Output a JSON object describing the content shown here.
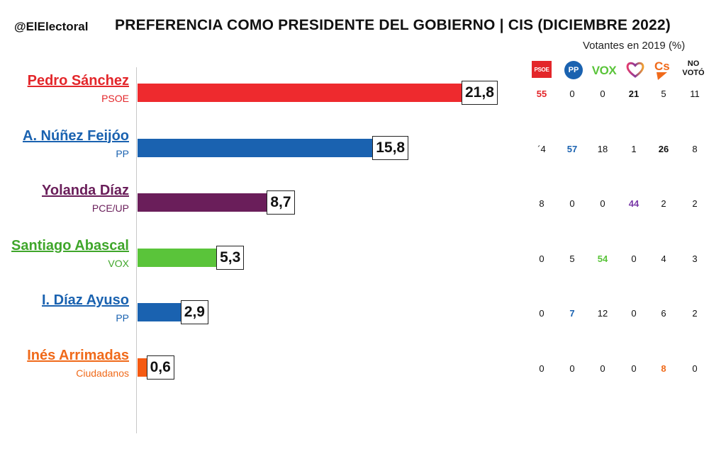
{
  "header": {
    "handle": "@ElElectoral",
    "title": "PREFERENCIA COMO PRESIDENTE DEL GOBIERNO |   CIS (DICIEMBRE 2022)",
    "subtitle": "Votantes en 2019 (%)"
  },
  "table_header": {
    "columns": [
      {
        "name": "PSOE",
        "icon": "psoe-logo",
        "logo_text": "PSOE",
        "color": "#e3262a"
      },
      {
        "name": "PP",
        "icon": "pp-logo",
        "logo_text": "PP",
        "color": "#1a62b0"
      },
      {
        "name": "VOX",
        "icon": "vox-logo",
        "logo_text": "VOX",
        "color": "#5ac43a"
      },
      {
        "name": "UP",
        "icon": "heart-logo",
        "color": "#6c2a7a"
      },
      {
        "name": "Cs",
        "icon": "cs-logo",
        "color": "#f06a1a"
      },
      {
        "name": "NO VOTÓ",
        "icon": "none"
      }
    ],
    "novoto_line1": "NO",
    "novoto_line2": "VOTÓ"
  },
  "chart_data": {
    "type": "bar",
    "orientation": "horizontal",
    "title": "PREFERENCIA COMO PRESIDENTE DEL GOBIERNO |   CIS (DICIEMBRE 2022)",
    "categories": [
      "Pedro Sánchez",
      "A. Núñez Feijóo",
      "Yolanda Díaz",
      "Santiago Abascal",
      "I. Díaz Ayuso",
      "Inés Arrimadas"
    ],
    "values": [
      21.8,
      15.8,
      8.7,
      5.3,
      2.9,
      0.6
    ],
    "value_labels": [
      "21,8",
      "15,8",
      "8,7",
      "5,3",
      "2,9",
      "0,6"
    ],
    "xlim": [
      0,
      25
    ],
    "grid": false,
    "bars": [
      {
        "name": "Pedro Sánchez",
        "party": "PSOE",
        "value": 21.8,
        "label": "21,8",
        "color": "#ee2a2e",
        "text_color": "#e3262a"
      },
      {
        "name": "A. Núñez Feijóo",
        "party": "PP",
        "value": 15.8,
        "label": "15,8",
        "color": "#1a62b0",
        "text_color": "#1a62b0"
      },
      {
        "name": "Yolanda Díaz",
        "party": "PCE/UP",
        "value": 8.7,
        "label": "8,7",
        "color": "#6a1e5a",
        "text_color": "#6a1e5a"
      },
      {
        "name": "Santiago Abascal",
        "party": "VOX",
        "value": 5.3,
        "label": "5,3",
        "color": "#5ac43a",
        "text_color": "#3fa62a"
      },
      {
        "name": "I. Díaz Ayuso",
        "party": "PP",
        "value": 2.9,
        "label": "2,9",
        "color": "#1a62b0",
        "text_color": "#1a62b0"
      },
      {
        "name": "Inés Arrimadas",
        "party": "Ciudadanos",
        "value": 0.6,
        "label": "0,6",
        "color": "#f55a12",
        "text_color": "#f06a1a"
      }
    ],
    "table": {
      "columns": [
        "PSOE",
        "PP",
        "VOX",
        "UP",
        "Cs",
        "NO VOTÓ"
      ],
      "rows": [
        {
          "candidate": "Pedro Sánchez",
          "values": [
            "55",
            "0",
            "0",
            "21",
            "5",
            "11"
          ],
          "highlight": [
            0,
            3
          ],
          "highlight_color": "#e3262a"
        },
        {
          "candidate": "A. Núñez Feijóo",
          "values": [
            "´4",
            "57",
            "18",
            "1",
            "26",
            "8"
          ],
          "highlight": [
            1,
            4
          ],
          "highlight_color": "#1a62b0"
        },
        {
          "candidate": "Yolanda Díaz",
          "values": [
            "8",
            "0",
            "0",
            "44",
            "2",
            "2"
          ],
          "highlight": [
            3
          ],
          "highlight_color": "#7a3aa8"
        },
        {
          "candidate": "Santiago Abascal",
          "values": [
            "0",
            "5",
            "54",
            "0",
            "4",
            "3"
          ],
          "highlight": [
            2
          ],
          "highlight_color": "#5ac43a"
        },
        {
          "candidate": "I. Díaz Ayuso",
          "values": [
            "0",
            "7",
            "12",
            "0",
            "6",
            "2"
          ],
          "highlight": [
            1
          ],
          "highlight_color": "#1a62b0"
        },
        {
          "candidate": "Inés Arrimadas",
          "values": [
            "0",
            "0",
            "0",
            "0",
            "8",
            "0"
          ],
          "highlight": [
            4
          ],
          "highlight_color": "#f06a1a"
        }
      ]
    }
  }
}
